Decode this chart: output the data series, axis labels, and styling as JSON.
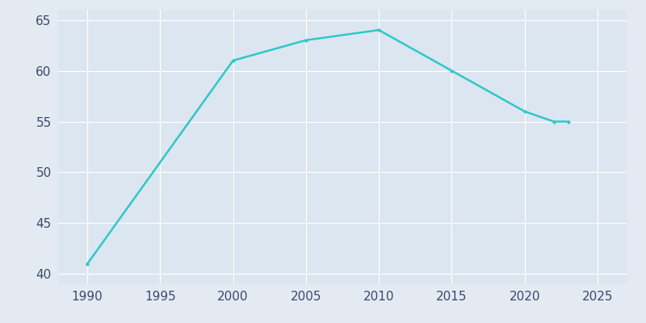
{
  "years": [
    1990,
    2000,
    2005,
    2010,
    2015,
    2020,
    2022,
    2023
  ],
  "population": [
    41,
    61,
    63,
    64,
    60,
    56,
    55,
    55
  ],
  "line_color": "#2EC8C8",
  "bg_color": "#E3EAF2",
  "axes_bg_color": "#DCE6F0",
  "grid_color": "#FFFFFF",
  "tick_label_color": "#3A4A6B",
  "xlim": [
    1988,
    2027
  ],
  "ylim": [
    39,
    66
  ],
  "yticks": [
    40,
    45,
    50,
    55,
    60,
    65
  ],
  "xticks": [
    1990,
    1995,
    2000,
    2005,
    2010,
    2015,
    2020,
    2025
  ],
  "linewidth": 1.8,
  "tick_fontsize": 11
}
